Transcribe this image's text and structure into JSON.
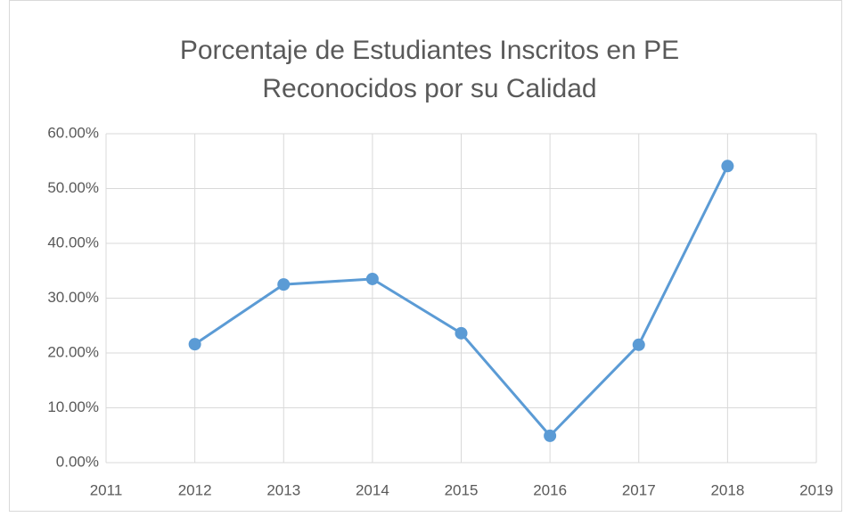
{
  "chart_data": {
    "type": "line",
    "title": [
      "Porcentaje de Estudiantes Inscritos en PE",
      "Reconocidos por su Calidad"
    ],
    "x": [
      2012,
      2013,
      2014,
      2015,
      2016,
      2017,
      2018
    ],
    "values": [
      21.6,
      32.5,
      33.5,
      23.6,
      4.9,
      21.5,
      54.1
    ],
    "color": "#5b9bd5",
    "xlim": [
      2011,
      2019
    ],
    "xticks": [
      2011,
      2012,
      2013,
      2014,
      2015,
      2016,
      2017,
      2018,
      2019
    ],
    "ylim": [
      0,
      60
    ],
    "yticks": [
      {
        "value": 0,
        "label": "0.00%"
      },
      {
        "value": 10,
        "label": "10.00%"
      },
      {
        "value": 20,
        "label": "20.00%"
      },
      {
        "value": 30,
        "label": "30.00%"
      },
      {
        "value": 40,
        "label": "40.00%"
      },
      {
        "value": 50,
        "label": "50.00%"
      },
      {
        "value": 60,
        "label": "60.00%"
      }
    ],
    "grid": true
  }
}
